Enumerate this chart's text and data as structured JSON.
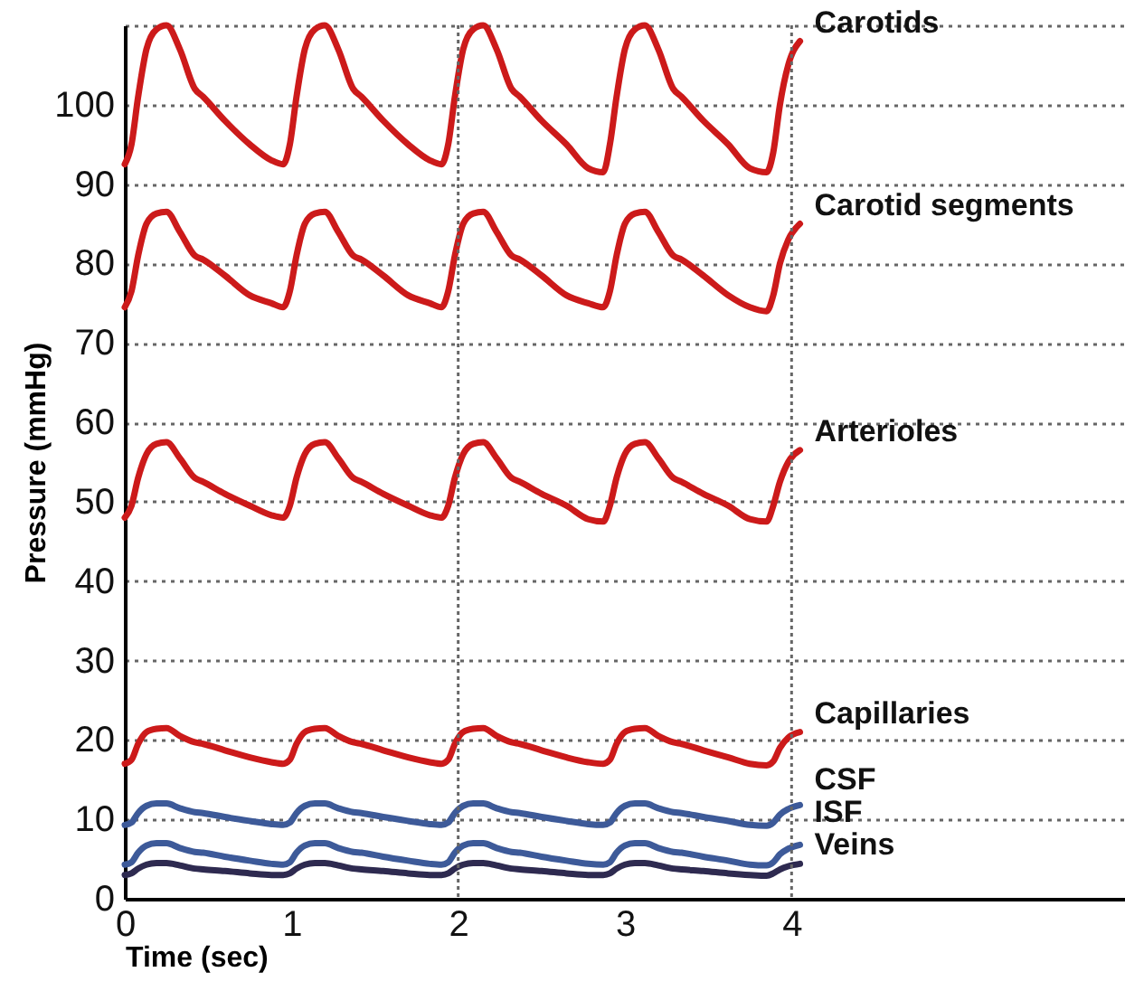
{
  "chart_data": {
    "type": "line",
    "xlabel": "Time (sec)",
    "ylabel": "Pressure (mmHg)",
    "x": [
      0,
      0.04,
      0.08,
      0.13,
      0.19,
      0.25,
      0.33,
      0.42,
      0.47,
      0.6,
      0.75,
      0.88,
      0.95,
      0.99,
      1.03,
      1.08,
      1.14,
      1.2,
      1.28,
      1.37,
      1.42,
      1.55,
      1.7,
      1.83,
      1.9,
      1.94,
      1.98,
      2.03,
      2.09,
      2.15,
      2.23,
      2.32,
      2.37,
      2.5,
      2.65,
      2.78,
      2.87,
      2.91,
      2.95,
      3.0,
      3.06,
      3.12,
      3.2,
      3.29,
      3.34,
      3.47,
      3.62,
      3.75,
      3.85,
      3.89,
      3.93,
      3.98,
      4.05
    ],
    "series": [
      {
        "name": "Carotids",
        "color": "#cc1a1a",
        "values": [
          92.5,
          95,
          101,
          107,
          109.5,
          110,
          107,
          102,
          101,
          98,
          95,
          93,
          92.5,
          95,
          101,
          107,
          109.5,
          110,
          107,
          102,
          101,
          98,
          95,
          93,
          92.5,
          95,
          101,
          107,
          109.5,
          110,
          107,
          102,
          101,
          98,
          95,
          92,
          91.5,
          95,
          101,
          107,
          109.5,
          110,
          107,
          102,
          101,
          98,
          95,
          92,
          91.5,
          94,
          100,
          105,
          108
        ]
      },
      {
        "name": "Carotid segments",
        "color": "#cc1a1a",
        "values": [
          74.5,
          76.5,
          81,
          85,
          86.3,
          86.5,
          84,
          81,
          80.5,
          78.5,
          76,
          75,
          74.5,
          76.5,
          81,
          85,
          86.3,
          86.5,
          84,
          81,
          80.5,
          78.5,
          76,
          75,
          74.5,
          76.5,
          81,
          85,
          86.3,
          86.5,
          84,
          81,
          80.5,
          78.5,
          76,
          75,
          74.5,
          76.5,
          81,
          85,
          86.3,
          86.5,
          84,
          81,
          80.5,
          78.5,
          76,
          74.5,
          74,
          76,
          80,
          83,
          85
        ]
      },
      {
        "name": "Arterioles",
        "color": "#cc1a1a",
        "values": [
          48,
          49.5,
          53,
          56,
          57.3,
          57.5,
          55.5,
          53,
          52.5,
          51,
          49.5,
          48.3,
          48,
          49.5,
          53,
          56,
          57.3,
          57.5,
          55.5,
          53,
          52.5,
          51,
          49.5,
          48.3,
          48,
          49.5,
          53,
          56,
          57.3,
          57.5,
          55.5,
          53,
          52.5,
          51,
          49.5,
          47.8,
          47.5,
          49.5,
          53,
          56,
          57.3,
          57.5,
          55.5,
          53,
          52.5,
          51,
          49.5,
          47.8,
          47.5,
          49.5,
          52.5,
          55,
          56.5
        ]
      },
      {
        "name": "Capillaries",
        "color": "#cc1a1a",
        "values": [
          17,
          17.5,
          19.5,
          21,
          21.4,
          21.5,
          20.5,
          19.7,
          19.5,
          18.7,
          17.8,
          17.2,
          17,
          17.5,
          19.5,
          21,
          21.4,
          21.5,
          20.5,
          19.7,
          19.5,
          18.7,
          17.8,
          17.2,
          17,
          17.5,
          19.5,
          21,
          21.4,
          21.5,
          20.5,
          19.7,
          19.5,
          18.7,
          17.8,
          17.2,
          17,
          17.5,
          19.5,
          21,
          21.4,
          21.5,
          20.5,
          19.7,
          19.5,
          18.7,
          17.8,
          17,
          16.8,
          17.3,
          19,
          20.3,
          21
        ]
      },
      {
        "name": "CSF",
        "color": "#3d5a99",
        "values": [
          9.3,
          9.6,
          10.8,
          11.7,
          12,
          12,
          11.4,
          10.9,
          10.8,
          10.3,
          9.8,
          9.4,
          9.3,
          9.6,
          10.8,
          11.7,
          12,
          12,
          11.4,
          10.9,
          10.8,
          10.3,
          9.8,
          9.4,
          9.3,
          9.6,
          10.8,
          11.7,
          12,
          12,
          11.4,
          10.9,
          10.8,
          10.3,
          9.8,
          9.4,
          9.3,
          9.6,
          10.8,
          11.7,
          12,
          12,
          11.4,
          10.9,
          10.8,
          10.3,
          9.8,
          9.3,
          9.2,
          9.6,
          10.6,
          11.3,
          11.8
        ]
      },
      {
        "name": "ISF",
        "color": "#3d5a99",
        "values": [
          4.3,
          4.6,
          5.8,
          6.7,
          7,
          7,
          6.4,
          5.9,
          5.8,
          5.3,
          4.8,
          4.4,
          4.3,
          4.6,
          5.8,
          6.7,
          7,
          7,
          6.4,
          5.9,
          5.8,
          5.3,
          4.8,
          4.4,
          4.3,
          4.6,
          5.8,
          6.7,
          7,
          7,
          6.4,
          5.9,
          5.8,
          5.3,
          4.8,
          4.4,
          4.3,
          4.6,
          5.8,
          6.7,
          7,
          7,
          6.4,
          5.9,
          5.8,
          5.3,
          4.8,
          4.3,
          4.2,
          4.6,
          5.6,
          6.3,
          6.8
        ]
      },
      {
        "name": "Veins",
        "color": "#2e2a50",
        "values": [
          3,
          3.2,
          3.8,
          4.3,
          4.5,
          4.5,
          4.2,
          3.8,
          3.7,
          3.5,
          3.2,
          3,
          3,
          3.2,
          3.8,
          4.3,
          4.5,
          4.5,
          4.2,
          3.8,
          3.7,
          3.5,
          3.2,
          3,
          3,
          3.2,
          3.8,
          4.3,
          4.5,
          4.5,
          4.2,
          3.8,
          3.7,
          3.5,
          3.2,
          3,
          3,
          3.2,
          3.8,
          4.3,
          4.5,
          4.5,
          4.2,
          3.8,
          3.7,
          3.5,
          3.2,
          3,
          2.9,
          3.2,
          3.7,
          4.1,
          4.4
        ]
      }
    ],
    "xlim": [
      0,
      6
    ],
    "xticks": [
      0,
      1,
      2,
      3,
      4
    ],
    "ylim": [
      0,
      110
    ],
    "yticks": [
      0,
      10,
      20,
      30,
      40,
      50,
      60,
      70,
      80,
      90,
      100,
      {
        "value": 110,
        "label": null
      }
    ],
    "grid": "y",
    "marker": "none",
    "line_style": "solid",
    "ref_lines": [
      {
        "axis": "x",
        "value": 2,
        "color": "#666666",
        "line_style": "dotted"
      },
      {
        "axis": "x",
        "value": 4,
        "color": "#666666",
        "line_style": "dotted"
      }
    ]
  }
}
